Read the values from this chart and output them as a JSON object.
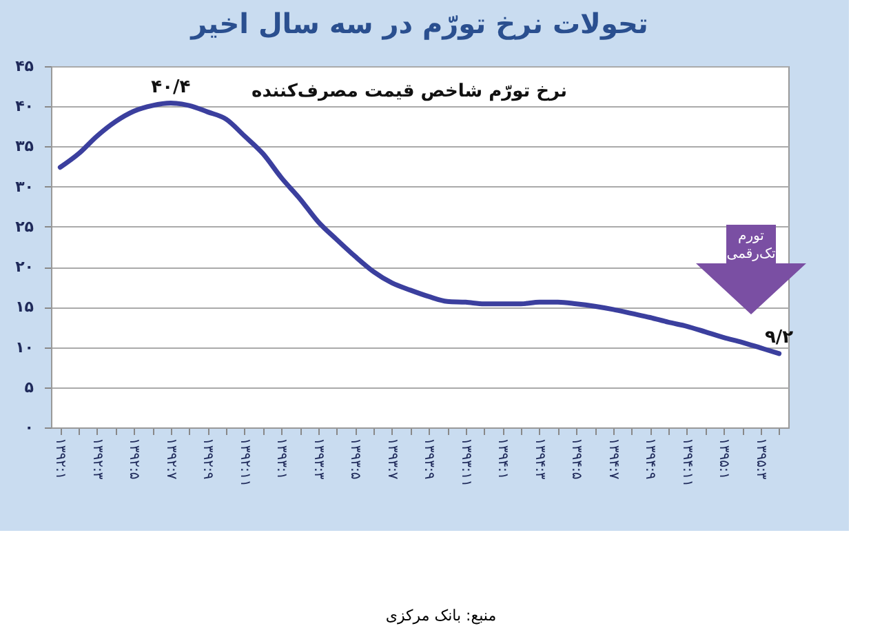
{
  "chart_data": {
    "type": "line",
    "title": "تحولات نرخ تورّم در سه سال اخیر",
    "subtitle": "نرخ تورّم شاخص قیمت مصرف‌کننده",
    "categories": [
      "۱۳۹۲:۱",
      null,
      "۱۳۹۲:۳",
      null,
      "۱۳۹۲:۵",
      null,
      "۱۳۹۲:۷",
      null,
      "۱۳۹۲:۹",
      null,
      "۱۳۹۲:۱۱",
      null,
      "۱۳۹۳:۱",
      null,
      "۱۳۹۳:۳",
      null,
      "۱۳۹۳:۵",
      null,
      "۱۳۹۳:۷",
      null,
      "۱۳۹۳:۹",
      null,
      "۱۳۹۳:۱۱",
      null,
      "۱۳۹۴:۱",
      null,
      "۱۳۹۴:۳",
      null,
      "۱۳۹۴:۵",
      null,
      "۱۳۹۴:۷",
      null,
      "۱۳۹۴:۹",
      null,
      "۱۳۹۴:۱۱",
      null,
      "۱۳۹۵:۱",
      null,
      "۱۳۹۵:۳",
      null
    ],
    "series": [
      {
        "color": "#3b3f9e",
        "values": [
          32.4,
          34.1,
          36.3,
          38.1,
          39.4,
          40.1,
          40.4,
          40.1,
          39.3,
          38.4,
          36.3,
          34.1,
          31.1,
          28.5,
          25.6,
          23.4,
          21.3,
          19.4,
          18.0,
          17.1,
          16.3,
          15.7,
          15.6,
          15.4,
          15.4,
          15.4,
          15.6,
          15.6,
          15.4,
          15.1,
          14.7,
          14.2,
          13.7,
          13.1,
          12.6,
          11.9,
          11.2,
          10.6,
          9.9,
          9.2
        ]
      }
    ],
    "ylim": [
      0,
      45
    ],
    "yticks": [
      {
        "value": 0,
        "label": "۰"
      },
      {
        "value": 5,
        "label": "۵"
      },
      {
        "value": 10,
        "label": "۱۰"
      },
      {
        "value": 15,
        "label": "۱۵"
      },
      {
        "value": 20,
        "label": "۲۰"
      },
      {
        "value": 25,
        "label": "۲۵"
      },
      {
        "value": 30,
        "label": "۳۰"
      },
      {
        "value": 35,
        "label": "۳۵"
      },
      {
        "value": 40,
        "label": "۴۰"
      },
      {
        "value": 45,
        "label": "۴۵"
      }
    ],
    "grid": "y",
    "marker": "none",
    "line_style": "solid",
    "annotations": [
      {
        "text": "۴۰/۴",
        "x": "۱۳۹۲:۷",
        "y": 40.4
      },
      {
        "text": "۹/۲",
        "y": 9.2
      },
      "تورم تک‌رقمی",
      "منبع: بانک مرکزی"
    ]
  }
}
